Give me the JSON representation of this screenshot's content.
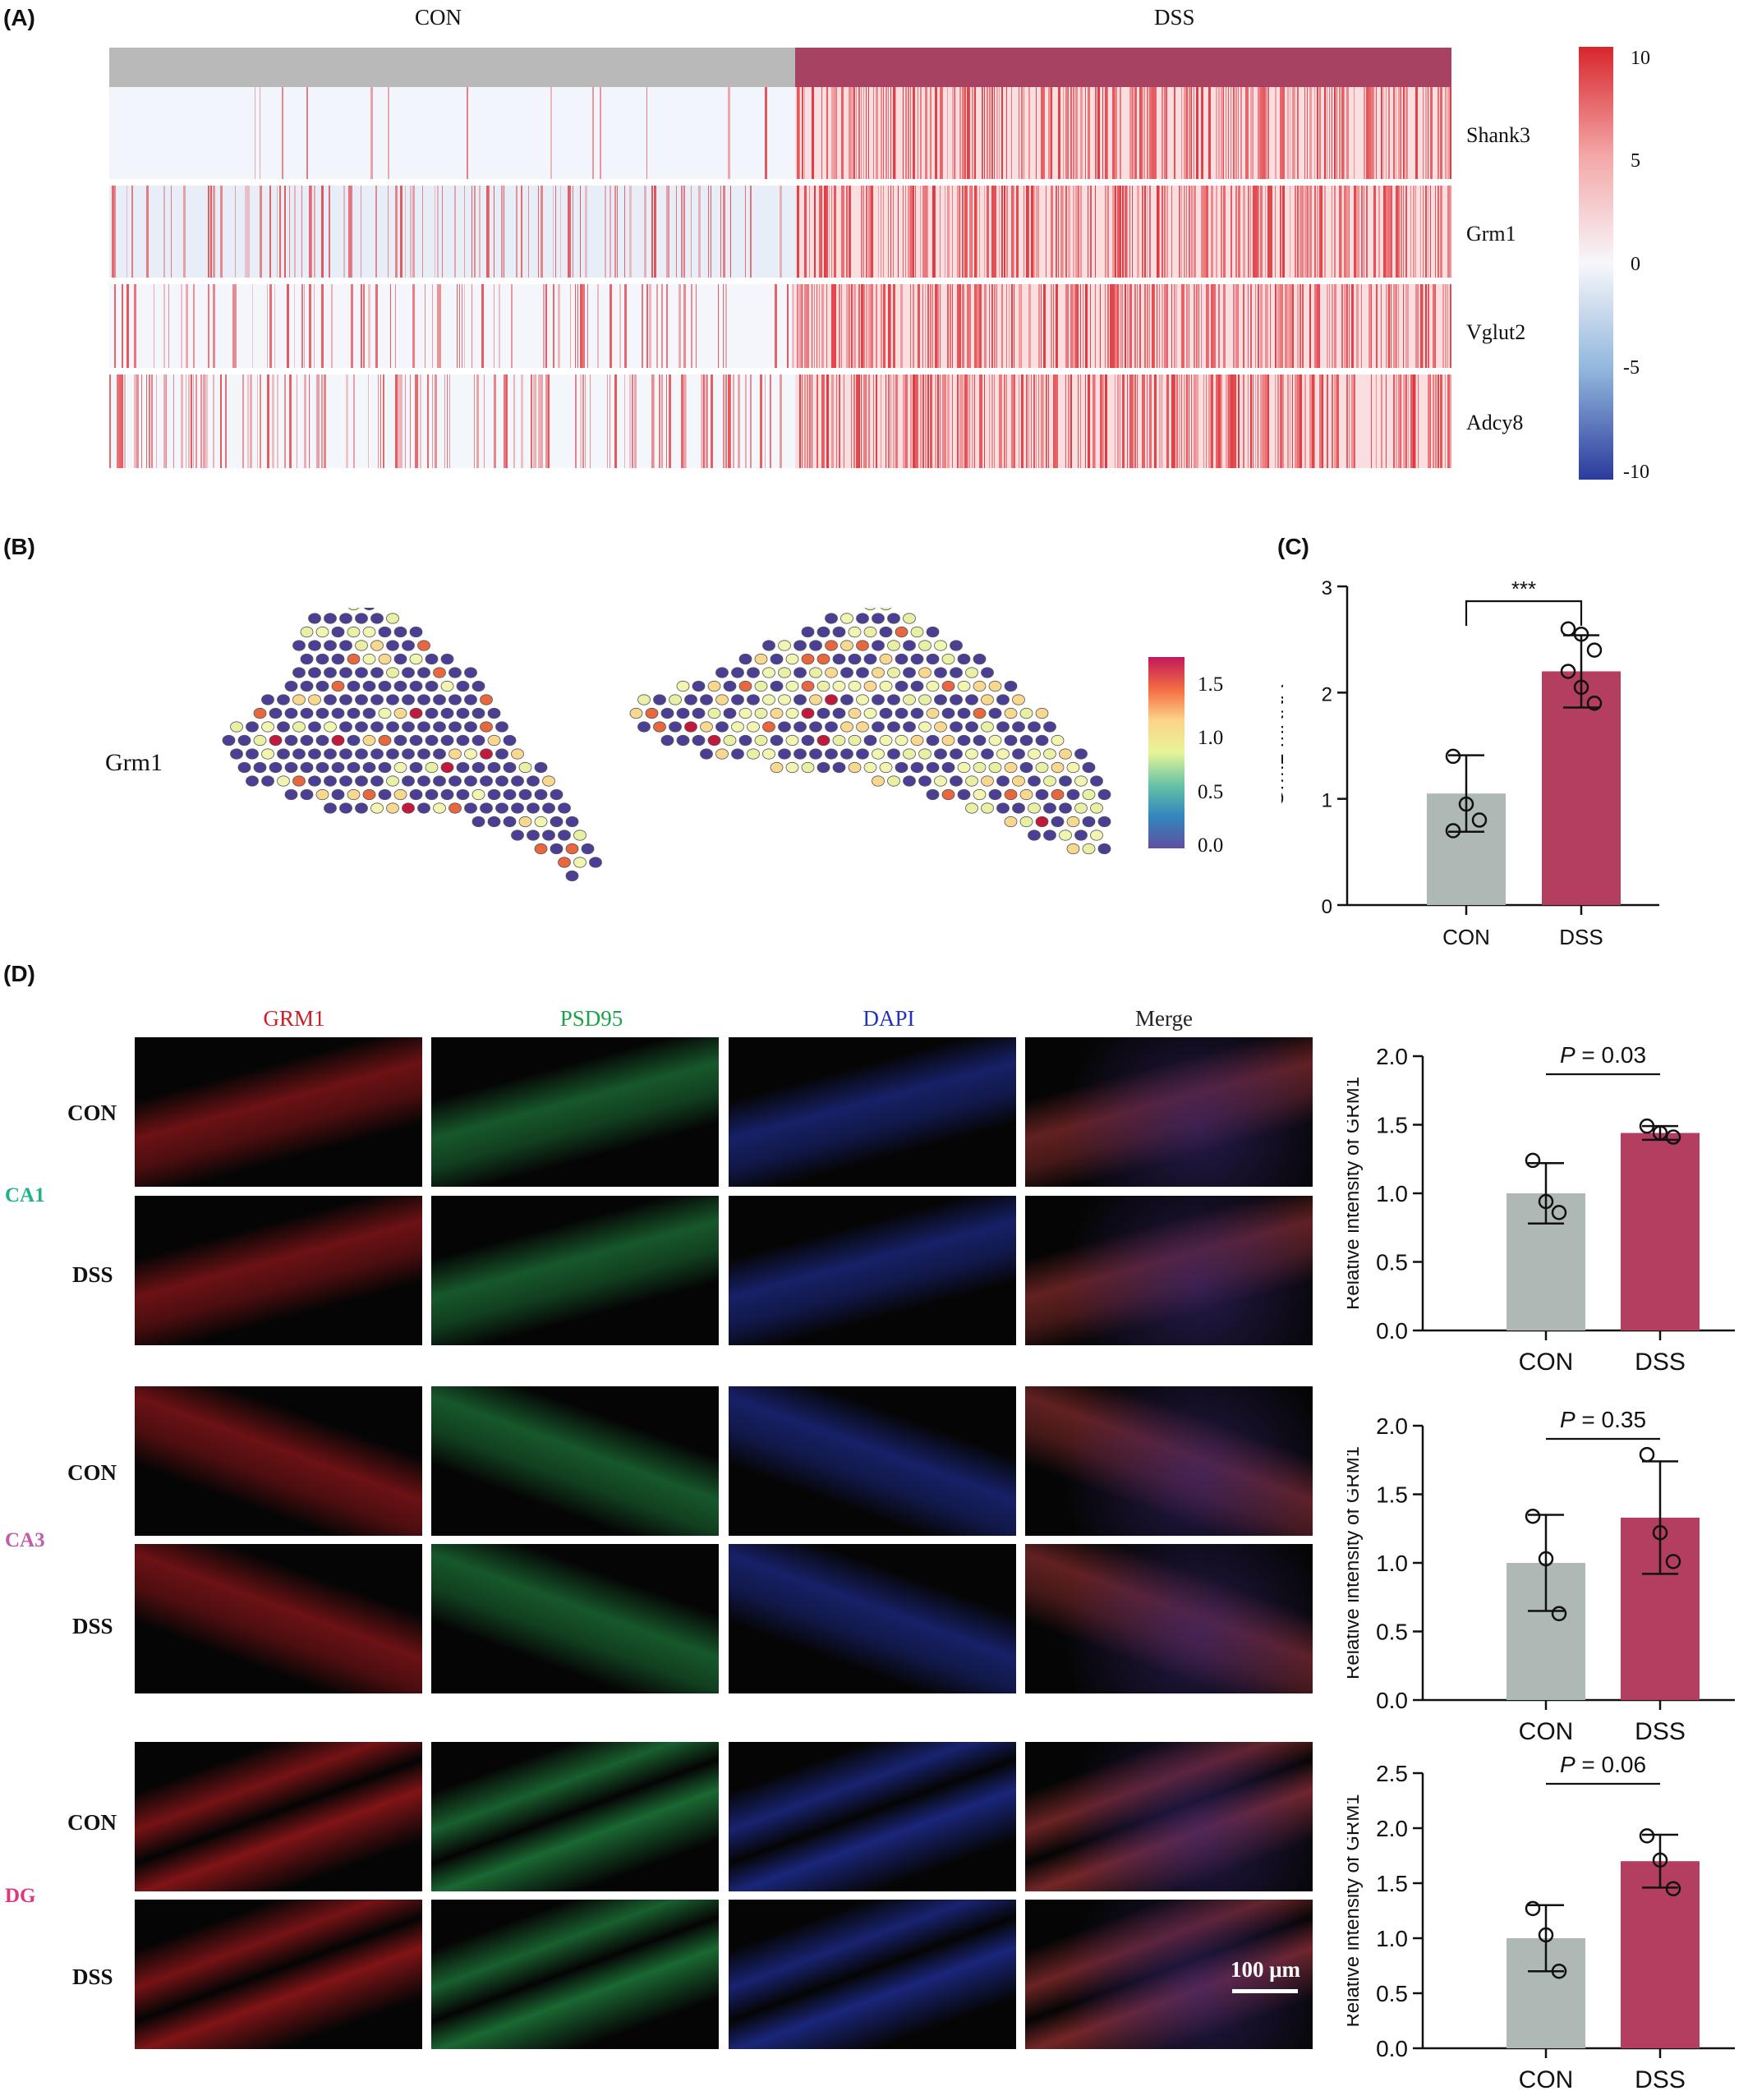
{
  "panel_labels": {
    "a": "(A)",
    "b": "(B)",
    "c": "(C)",
    "d": "(D)"
  },
  "panel_a": {
    "groups": [
      "CON",
      "DSS"
    ],
    "group_colors": [
      "#b9b9b9",
      "#a84262"
    ],
    "genes": [
      "Shank3",
      "Grm1",
      "Vglut2",
      "Adcy8"
    ],
    "colorbar_ticks": [
      "10",
      "5",
      "0",
      "-5",
      "-10"
    ],
    "colorbar_colors": [
      "#d7262c",
      "#f4a6a6",
      "#f7f7fb",
      "#8fb5dc",
      "#2b3a9c"
    ]
  },
  "panel_b": {
    "gene_label": "Grm1",
    "colorbar_ticks": [
      "1.5",
      "1.0",
      "0.5",
      "0.0"
    ],
    "colorbar_colors": [
      "#c2185b",
      "#f46d43",
      "#fdd38a",
      "#e6f598",
      "#66c2a5",
      "#3288bd",
      "#5e4fa2"
    ]
  },
  "panel_c": {
    "ylabel": "Grm1 mRNA",
    "significance": "***",
    "chart_data": {
      "type": "bar",
      "categories": [
        "CON",
        "DSS"
      ],
      "values": [
        1.05,
        2.2
      ],
      "errors": [
        0.36,
        0.34
      ],
      "points": [
        [
          1.4,
          0.95,
          0.8,
          0.7
        ],
        [
          2.6,
          2.55,
          2.4,
          2.2,
          2.05,
          1.9
        ]
      ],
      "ylim": [
        0,
        3
      ],
      "yticks": [
        "0",
        "1",
        "2",
        "3"
      ],
      "colors": [
        "#aeb8b5",
        "#b33e60"
      ]
    }
  },
  "panel_d": {
    "stains": [
      "GRM1",
      "PSD95",
      "DAPI",
      "Merge"
    ],
    "stain_colors": [
      "#d01c24",
      "#1aa34a",
      "#2233bb",
      "#222222"
    ],
    "regions": [
      {
        "name": "CA1",
        "color": "#1fb389"
      },
      {
        "name": "CA3",
        "color": "#c45aa8"
      },
      {
        "name": "DG",
        "color": "#e0357f"
      }
    ],
    "row_labels": [
      "CON",
      "DSS"
    ],
    "scale_bar": "100 μm",
    "ylabel": "Relative intensity of GRM1",
    "charts": [
      {
        "type": "bar",
        "categories": [
          "CON",
          "DSS"
        ],
        "values": [
          1.0,
          1.44
        ],
        "errors": [
          0.22,
          0.05
        ],
        "points": [
          [
            1.24,
            0.94,
            0.86
          ],
          [
            1.49,
            1.44,
            1.41
          ]
        ],
        "ylim": [
          0,
          2.0
        ],
        "yticks": [
          "0.0",
          "0.5",
          "1.0",
          "1.5",
          "2.0"
        ],
        "p_label": "P",
        "p_value": " = 0.03",
        "colors": [
          "#aeb8b5",
          "#b33e60"
        ]
      },
      {
        "type": "bar",
        "categories": [
          "CON",
          "DSS"
        ],
        "values": [
          1.0,
          1.33
        ],
        "errors": [
          0.35,
          0.41
        ],
        "points": [
          [
            1.34,
            1.03,
            0.63
          ],
          [
            1.79,
            1.22,
            1.01
          ]
        ],
        "ylim": [
          0,
          2.0
        ],
        "yticks": [
          "0.0",
          "0.5",
          "1.0",
          "1.5",
          "2.0"
        ],
        "p_label": "P",
        "p_value": " = 0.35",
        "colors": [
          "#aeb8b5",
          "#b33e60"
        ]
      },
      {
        "type": "bar",
        "categories": [
          "CON",
          "DSS"
        ],
        "values": [
          1.0,
          1.7
        ],
        "errors": [
          0.3,
          0.24
        ],
        "points": [
          [
            1.27,
            1.03,
            0.7
          ],
          [
            1.93,
            1.71,
            1.45
          ]
        ],
        "ylim": [
          0,
          2.5
        ],
        "yticks": [
          "0.0",
          "0.5",
          "1.0",
          "1.5",
          "2.0",
          "2.5"
        ],
        "p_label": "P",
        "p_value": " = 0.06",
        "colors": [
          "#aeb8b5",
          "#b33e60"
        ]
      }
    ]
  }
}
